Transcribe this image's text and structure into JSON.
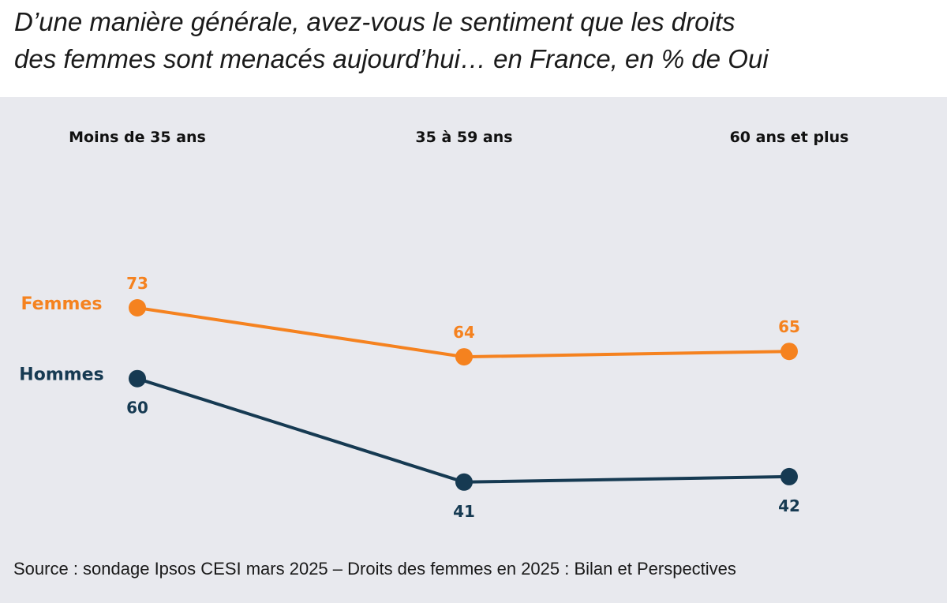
{
  "title": {
    "line1": "D’une manière générale, avez-vous le sentiment que les droits",
    "line2": "des femmes sont menacés aujourd’hui… en France, en % de Oui"
  },
  "source": "Source : sondage Ipsos CESI mars 2025 – Droits des femmes en 2025 : Bilan et Perspectives",
  "chart_data": {
    "type": "line",
    "categories": [
      "Moins de 35 ans",
      "35 à 59 ans",
      "60 ans et plus"
    ],
    "series": [
      {
        "name": "Femmes",
        "values": [
          73,
          64,
          65
        ],
        "color": "#f5821f"
      },
      {
        "name": "Hommes",
        "values": [
          60,
          41,
          42
        ],
        "color": "#163a52"
      }
    ],
    "data_labels": true,
    "grid": false,
    "legend": "series names at left of lines",
    "background": "#e8e9ee"
  }
}
